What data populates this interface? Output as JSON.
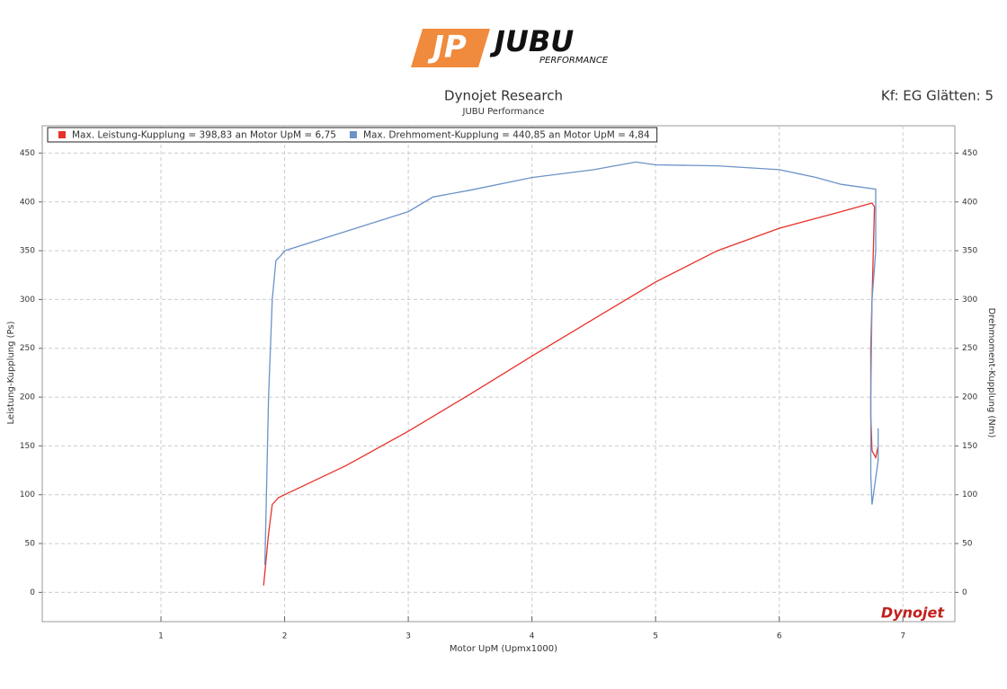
{
  "logo": {
    "mark": "JP",
    "name": "JUBU",
    "tagline": "PERFORMANCE"
  },
  "chart_data": {
    "type": "line",
    "title": "Dynojet Research",
    "subtitle": "JUBU Performance",
    "annotation": "Kf: EG Glätten: 5",
    "watermark": "Dynojet",
    "xlabel": "Motor UpM (Upmx1000)",
    "ylabel": "Leistung-Kupplung (Ps)",
    "y2label": "Drehmoment-Kupplung (Nm)",
    "xlim": [
      0.04,
      7.42
    ],
    "xticks": [
      1,
      2,
      3,
      4,
      5,
      6,
      7
    ],
    "ylim": [
      -30,
      478
    ],
    "yticks": [
      0,
      50,
      100,
      150,
      200,
      250,
      300,
      350,
      400,
      450
    ],
    "y2lim": [
      -30,
      478
    ],
    "y2ticks": [
      0,
      50,
      100,
      150,
      200,
      250,
      300,
      350,
      400,
      450
    ],
    "grid": true,
    "series": [
      {
        "name": "Max. Leistung-Kupplung = 398,83 an Motor UpM = 6,75",
        "color": "#e8312a",
        "x": [
          1.83,
          1.87,
          1.9,
          1.95,
          2.0,
          2.5,
          3.0,
          3.5,
          4.0,
          4.5,
          5.0,
          5.5,
          6.0,
          6.5,
          6.75,
          6.77,
          6.74,
          6.74,
          6.75,
          6.78,
          6.8
        ],
        "values": [
          7,
          60,
          90,
          97,
          100,
          130,
          165,
          203,
          242,
          280,
          318,
          350,
          373,
          390,
          398.83,
          395,
          250,
          180,
          145,
          138,
          150
        ]
      },
      {
        "name": "Max. Drehmoment-Kupplung = 440,85 an Motor UpM = 4,84",
        "color": "#6a93c8",
        "axis": "y2",
        "x": [
          1.84,
          1.87,
          1.9,
          1.93,
          1.97,
          2.0,
          2.5,
          3.0,
          3.2,
          3.5,
          4.0,
          4.5,
          4.84,
          5.0,
          5.5,
          6.0,
          6.3,
          6.5,
          6.78,
          6.78,
          6.75,
          6.74,
          6.74,
          6.75,
          6.8,
          6.8
        ],
        "values": [
          28,
          200,
          300,
          340,
          345,
          350,
          370,
          390,
          405,
          412,
          425,
          433,
          440.85,
          438,
          437,
          433,
          425,
          418,
          413,
          350,
          300,
          200,
          120,
          90,
          135,
          168
        ]
      }
    ]
  }
}
